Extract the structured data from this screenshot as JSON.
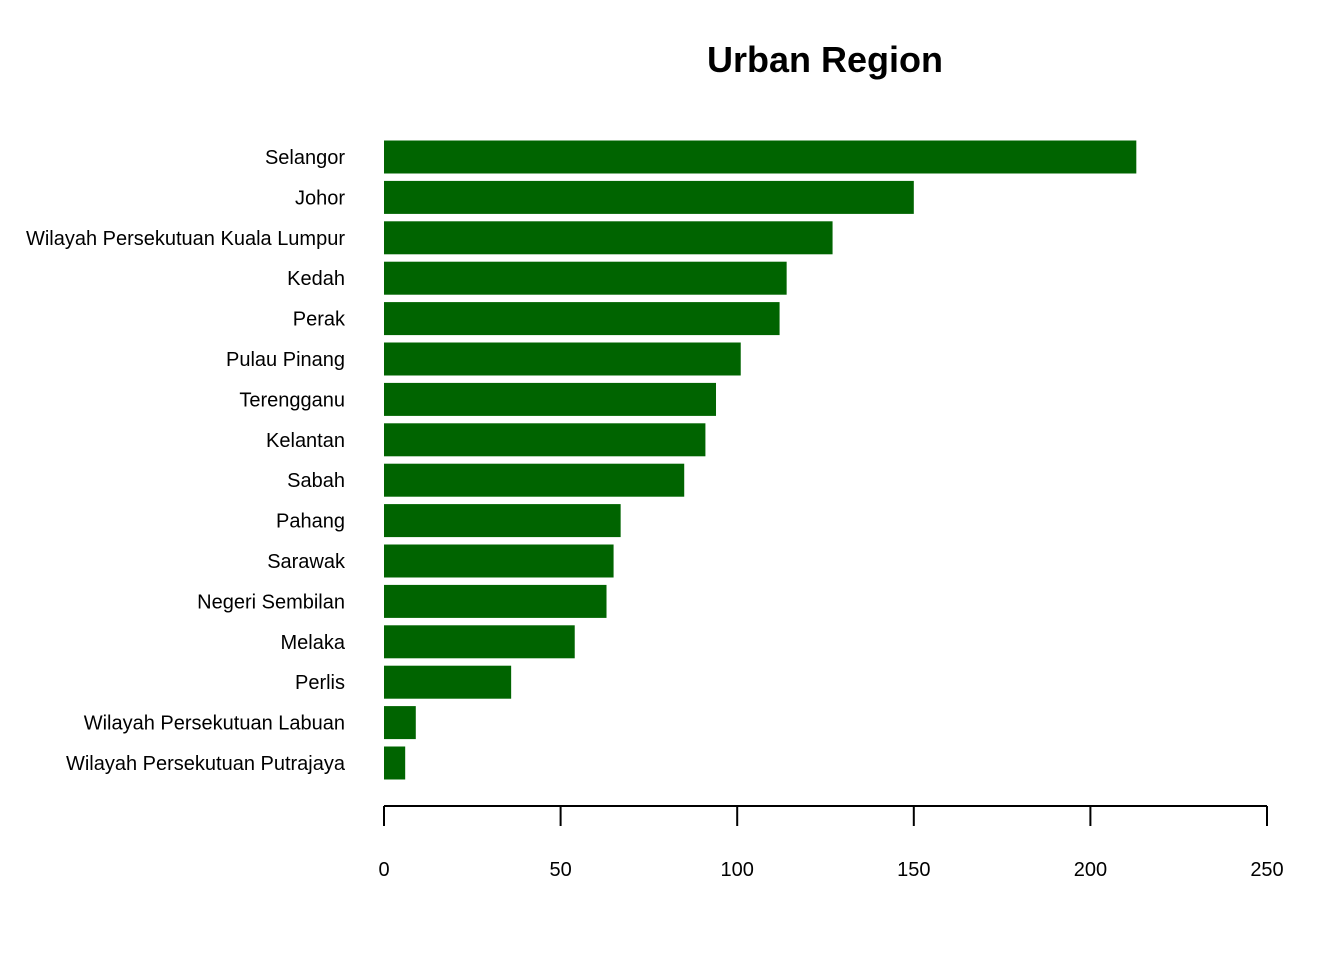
{
  "chart_data": {
    "type": "bar",
    "orientation": "horizontal",
    "title": "Urban Region",
    "xlabel": "",
    "ylabel": "",
    "categories": [
      "Selangor",
      "Johor",
      "Wilayah Persekutuan Kuala Lumpur",
      "Kedah",
      "Perak",
      "Pulau Pinang",
      "Terengganu",
      "Kelantan",
      "Sabah",
      "Pahang",
      "Sarawak",
      "Negeri Sembilan",
      "Melaka",
      "Perlis",
      "Wilayah Persekutuan Labuan",
      "Wilayah Persekutuan Putrajaya"
    ],
    "values": [
      213,
      150,
      127,
      114,
      112,
      101,
      94,
      91,
      85,
      67,
      65,
      63,
      54,
      36,
      9,
      6
    ],
    "xlim": [
      0,
      250
    ],
    "xticks": [
      0,
      50,
      100,
      150,
      200,
      250
    ],
    "bar_color": "#006400",
    "grid": false,
    "legend": "none"
  }
}
